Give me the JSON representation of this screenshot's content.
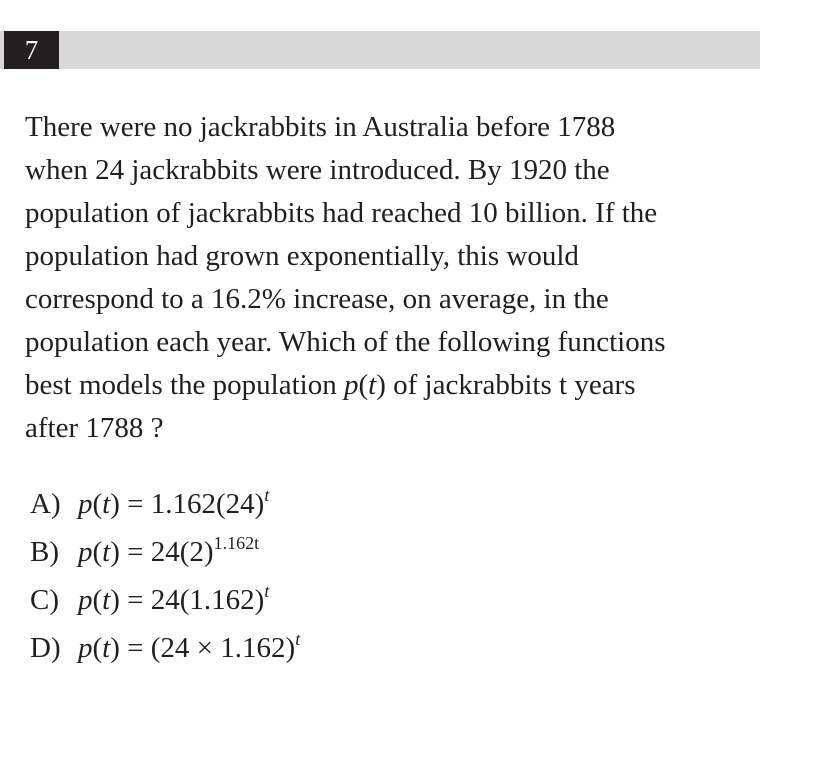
{
  "question": {
    "number": "7",
    "stem_lines": [
      "There were no jackrabbits in Australia before 1788",
      "when 24 jackrabbits were introduced. By 1920 the",
      "population of jackrabbits had reached 10 billion. If the",
      "population had grown exponentially, this would",
      "correspond to a 16.2% increase, on average, in the",
      "population each year. Which of the following functions"
    ],
    "stem_line7_before": "best models the population ",
    "stem_line7_fn": "p",
    "stem_line7_paren_open": "(",
    "stem_line7_var": "t",
    "stem_line7_paren_close": ")",
    "stem_line7_after": " of jackrabbits t years",
    "stem_line8": "after 1788 ?"
  },
  "choices": [
    {
      "letter": "A)",
      "fn": "p",
      "lparen": "(",
      "var": "t",
      "rparen": ")",
      "eq": " = ",
      "base": "1.162(24)",
      "exp": "t"
    },
    {
      "letter": "B)",
      "fn": "p",
      "lparen": "(",
      "var": "t",
      "rparen": ")",
      "eq": " = ",
      "base": "24(2)",
      "exp": "1.162t"
    },
    {
      "letter": "C)",
      "fn": "p",
      "lparen": "(",
      "var": "t",
      "rparen": ")",
      "eq": " = ",
      "base": "24(1.162)",
      "exp": "t"
    },
    {
      "letter": "D)",
      "fn": "p",
      "lparen": "(",
      "var": "t",
      "rparen": ")",
      "eq": " = ",
      "base": "(24 × 1.162)",
      "exp": "t"
    }
  ]
}
